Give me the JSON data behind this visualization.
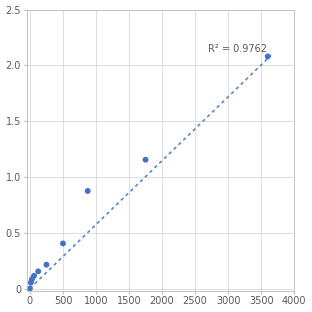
{
  "x": [
    0,
    15,
    31,
    62.5,
    125,
    250,
    500,
    875,
    1750,
    3600
  ],
  "y": [
    0.002,
    0.055,
    0.085,
    0.115,
    0.155,
    0.215,
    0.405,
    0.875,
    1.155,
    2.08
  ],
  "trendline_x": [
    0,
    3650
  ],
  "trendline_y": [
    0.002,
    2.09
  ],
  "r_squared": "R² = 0.9762",
  "r_squared_x": 2700,
  "r_squared_y": 2.15,
  "xlim": [
    -50,
    4000
  ],
  "ylim": [
    -0.02,
    2.5
  ],
  "xticks": [
    0,
    500,
    1000,
    1500,
    2000,
    2500,
    3000,
    3500,
    4000
  ],
  "yticks": [
    0,
    0.5,
    1.0,
    1.5,
    2.0,
    2.5
  ],
  "marker_color": "#4472C4",
  "line_color": "#5588CC",
  "background_color": "#ffffff",
  "grid_color": "#d9d9d9",
  "marker_size": 18,
  "font_size": 7,
  "tick_label_color": "#595959"
}
